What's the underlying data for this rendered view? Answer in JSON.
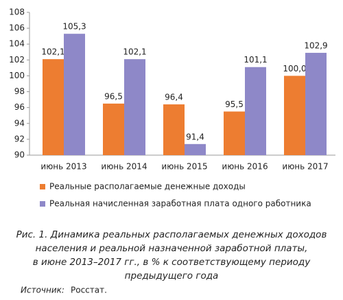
{
  "chart_data": {
    "type": "bar",
    "categories": [
      "июнь 2013",
      "июнь 2014",
      "июнь 2015",
      "июнь 2016",
      "июнь 2017"
    ],
    "series": [
      {
        "name": "Реальные располагаемые денежные доходы",
        "color": "#ed7d31",
        "values": [
          102.1,
          96.5,
          96.4,
          95.5,
          100.0
        ],
        "value_labels": [
          "102,1",
          "96,5",
          "96,4",
          "95,5",
          "100,0"
        ]
      },
      {
        "name": "Реальная начисленная заработная плата одного работника",
        "color": "#8e88c8",
        "values": [
          105.3,
          102.1,
          91.4,
          101.1,
          102.9
        ],
        "value_labels": [
          "105,3",
          "102,1",
          "91,4",
          "101,1",
          "102,9"
        ]
      }
    ],
    "ylim": [
      90,
      108
    ],
    "yticks": [
      90,
      92,
      94,
      96,
      98,
      100,
      102,
      104,
      106,
      108
    ],
    "caption": [
      "Рис. 1. Динамика реальных располагаемых денежных доходов",
      "населения и реальной назначенной заработной платы,",
      "в июне 2013–2017 гг., в % к соответствующему периоду",
      "предыдущего года"
    ],
    "source_label": "Источник:",
    "source_value": "Росстат."
  }
}
